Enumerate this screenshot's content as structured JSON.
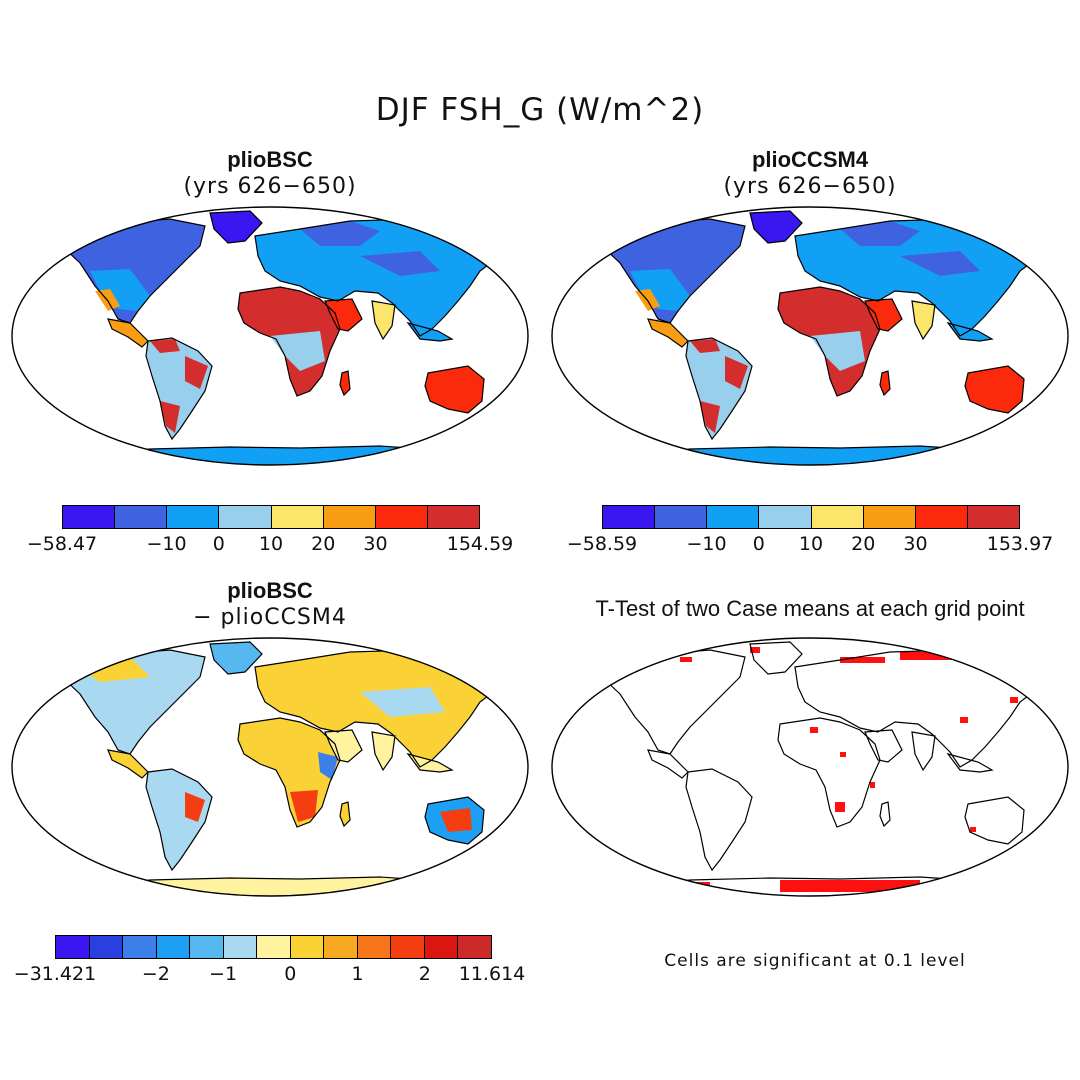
{
  "title": "DJF FSH_G (W/m^2)",
  "panels": {
    "p1": {
      "title": "plioBSC",
      "subtitle": "(yrs 626−650)"
    },
    "p2": {
      "title": "plioCCSM4",
      "subtitle": "(yrs 626−650)"
    },
    "p3": {
      "title": "plioBSC",
      "subtitle": "− plioCCSM4"
    },
    "p4": {
      "title": "T-Test of two Case means at each grid point"
    }
  },
  "colorbars": {
    "cb1": {
      "colors": [
        "#3a16f0",
        "#3f63e0",
        "#12a0f5",
        "#97cfec",
        "#fbe56a",
        "#f99d13",
        "#fb2a0d",
        "#d42d2d"
      ],
      "ticks": [
        "−58.47",
        "−10",
        "0",
        "10",
        "20",
        "30",
        "154.59"
      ]
    },
    "cb2": {
      "colors": [
        "#3a16f0",
        "#3f63e0",
        "#12a0f5",
        "#97cfec",
        "#fbe56a",
        "#f99d13",
        "#fb2a0d",
        "#d42d2d"
      ],
      "ticks": [
        "−58.59",
        "−10",
        "0",
        "10",
        "20",
        "30",
        "153.97"
      ]
    },
    "cb3": {
      "colors": [
        "#3a16f0",
        "#2a3fe0",
        "#3c7fe8",
        "#1d9ff4",
        "#55b9f0",
        "#a8d9f0",
        "#fff3a0",
        "#fbd235",
        "#f7a921",
        "#f8761a",
        "#f53d12",
        "#d9160f",
        "#cc2a2a"
      ],
      "ticks": [
        "−31.421",
        "−2",
        "−1",
        "0",
        "1",
        "2",
        "11.614"
      ]
    }
  },
  "note": "Cells are significant at 0.1 level",
  "legend_colors": {
    "ocean": "#ffffff",
    "significant": "#ff1010",
    "coast": "#000000"
  }
}
